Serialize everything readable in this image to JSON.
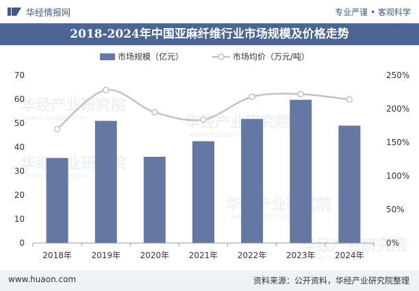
{
  "header": {
    "brand_name": "华经情报网",
    "tagline": "专业严谨 • 客观科学"
  },
  "footer": {
    "website": "www.huaon.com",
    "source": "资料来源：公开资料，华经产业研究院整理"
  },
  "watermark": {
    "text": "华经产业研究院",
    "url_text": "www.huaon.com"
  },
  "colors": {
    "bar": "#6478a3",
    "line": "#c2c2c2",
    "marker_fill": "#ffffff",
    "title_bg": "#4b6594",
    "axis_text": "#333333",
    "axis_line": "#999999"
  },
  "chart_data": {
    "type": "bar",
    "title": "2018-2024年中国亚麻纤维行业市场规模及价格走势",
    "categories": [
      "2018年",
      "2019年",
      "2020年",
      "2021年",
      "2022年",
      "2023年",
      "2024年"
    ],
    "series": [
      {
        "name": "市场规模（亿元）",
        "type": "bar",
        "axis": "left",
        "values": [
          35.5,
          51,
          36,
          42.5,
          51.8,
          59.8,
          49
        ]
      },
      {
        "name": "市场均价（万元/吨）",
        "type": "line",
        "axis": "right",
        "values": [
          1.7,
          2.28,
          1.95,
          1.84,
          2.18,
          2.22,
          2.14
        ]
      }
    ],
    "y_left": {
      "min": 0,
      "max": 70,
      "ticks": [
        "0",
        "10",
        "20",
        "30",
        "40",
        "50",
        "60",
        "70"
      ]
    },
    "y_right": {
      "min": 0,
      "max": 2.5,
      "ticks": [
        "0%",
        "50%",
        "100%",
        "150%",
        "200%",
        "250%"
      ]
    },
    "legend_position": "top-center",
    "grid": false
  }
}
